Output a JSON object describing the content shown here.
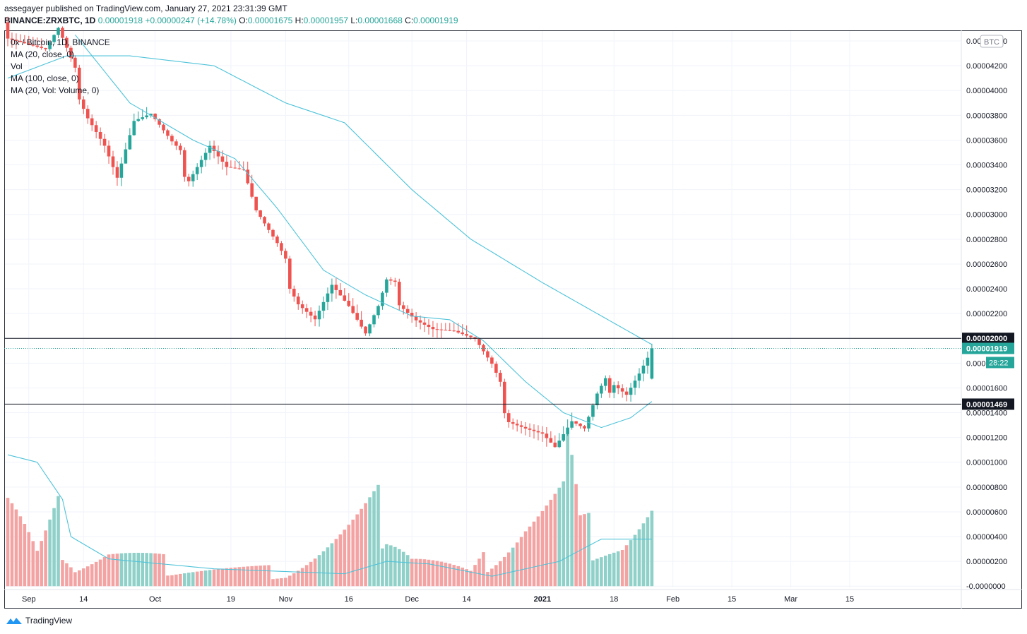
{
  "header": {
    "publisher": "assegayer published on TradingView.com, January 27, 2021 23:31:39 GMT",
    "symbol": "BINANCE:ZRXBTC, 1D",
    "last": "0.00001918",
    "change": "+0.00000247 (+14.78%)",
    "o_label": "O:",
    "o": "0.00001675",
    "h_label": "H:",
    "h": "0.00001957",
    "l_label": "L:",
    "l": "0.00001668",
    "c_label": "C:",
    "c": "0.00001919"
  },
  "legend": [
    "0x / Bitcoin, 1D, BINANCE",
    "MA (20, close, 0)",
    "Vol",
    "MA (100, close, 0)",
    "MA (20, Vol: Volume, 0)"
  ],
  "footer": {
    "brand": "TradingView"
  },
  "colors": {
    "up": "#26a69a",
    "down": "#ef5350",
    "ma": "#4fc3d9",
    "up_vol": "#8fd0c8",
    "down_vol": "#f4a3a3"
  },
  "chart_data": {
    "type": "candlestick",
    "currency_badge": "BTC",
    "countdown": "28:22",
    "ylim": [
      -0.0,
      4.5e-05
    ],
    "y_ticks": [
      "0.00004400",
      "0.00004200",
      "0.00004000",
      "0.00003800",
      "0.00003600",
      "0.00003400",
      "0.00003200",
      "0.00003000",
      "0.00002800",
      "0.00002600",
      "0.00002400",
      "0.00002200",
      "0.00002000",
      "0.00001800",
      "0.00001600",
      "0.00001400",
      "0.00001200",
      "0.00001000",
      "0.00000800",
      "0.00000600",
      "0.00000400",
      "0.00000200",
      "-0.0000000"
    ],
    "x_ticks": [
      "Sep",
      "14",
      "Oct",
      "19",
      "Nov",
      "16",
      "Dec",
      "14",
      "2021",
      "18",
      "Feb",
      "15",
      "Mar",
      "15"
    ],
    "horizontal_lines": [
      {
        "value": 2e-05,
        "label": "0.00002000"
      },
      {
        "value": 1.469e-05,
        "label": "0.00001469"
      }
    ],
    "last_price": {
      "value": 1.919e-05,
      "label": "0.00001919"
    },
    "date_range": [
      "2020-08-27",
      "2021-01-27"
    ],
    "close_anchors": [
      [
        "2020-08-27",
        4.45e-05
      ],
      [
        "2020-09-05",
        4.3e-05
      ],
      [
        "2020-09-08",
        4.45e-05
      ],
      [
        "2020-09-12",
        4.1e-05
      ],
      [
        "2020-09-15",
        3.85e-05
      ],
      [
        "2020-09-19",
        3.6e-05
      ],
      [
        "2020-09-22",
        3.32e-05
      ],
      [
        "2020-09-26",
        3.75e-05
      ],
      [
        "2020-09-30",
        3.78e-05
      ],
      [
        "2020-10-05",
        3.52e-05
      ],
      [
        "2020-10-09",
        3.35e-05
      ],
      [
        "2020-10-14",
        3.6e-05
      ],
      [
        "2020-10-18",
        3.4e-05
      ],
      [
        "2020-10-22",
        3.35e-05
      ],
      [
        "2020-10-25",
        3e-05
      ],
      [
        "2020-10-30",
        2.7e-05
      ],
      [
        "2020-11-04",
        2.35e-05
      ],
      [
        "2020-11-08",
        2.2e-05
      ],
      [
        "2020-11-12",
        2.45e-05
      ],
      [
        "2020-11-16",
        2.25e-05
      ],
      [
        "2020-11-20",
        2e-05
      ],
      [
        "2020-11-23",
        2.2e-05
      ],
      [
        "2020-11-25",
        2.4e-05
      ],
      [
        "2020-11-28",
        2.35e-05
      ],
      [
        "2020-12-02",
        2.2e-05
      ],
      [
        "2020-12-06",
        2.1e-05
      ],
      [
        "2020-12-11",
        2.05e-05
      ],
      [
        "2020-12-16",
        1.95e-05
      ],
      [
        "2020-12-20",
        1.72e-05
      ],
      [
        "2020-12-24",
        1.4e-05
      ],
      [
        "2020-12-28",
        1.32e-05
      ],
      [
        "2021-01-01",
        1.25e-05
      ],
      [
        "2021-01-04",
        1.12e-05
      ],
      [
        "2021-01-08",
        1.3e-05
      ],
      [
        "2021-01-11",
        1.22e-05
      ],
      [
        "2021-01-14",
        1.48e-05
      ],
      [
        "2021-01-18",
        1.7e-05
      ],
      [
        "2021-01-21",
        1.6e-05
      ],
      [
        "2021-01-24",
        1.75e-05
      ],
      [
        "2021-01-27",
        1.92e-05
      ]
    ],
    "ma20_anchors": [
      [
        "2020-09-12",
        4.45e-05
      ],
      [
        "2020-09-25",
        3.9e-05
      ],
      [
        "2020-10-10",
        3.6e-05
      ],
      [
        "2020-10-20",
        3.45e-05
      ],
      [
        "2020-10-30",
        3.05e-05
      ],
      [
        "2020-11-10",
        2.55e-05
      ],
      [
        "2020-11-20",
        2.35e-05
      ],
      [
        "2020-12-01",
        2.18e-05
      ],
      [
        "2020-12-10",
        2.15e-05
      ],
      [
        "2020-12-18",
        1.98e-05
      ],
      [
        "2020-12-28",
        1.65e-05
      ],
      [
        "2021-01-06",
        1.4e-05
      ],
      [
        "2021-01-15",
        1.28e-05
      ],
      [
        "2021-01-22",
        1.36e-05
      ],
      [
        "2021-01-27",
        1.49e-05
      ]
    ],
    "ma100_anchors": [
      [
        "2020-08-27",
        4.1e-05
      ],
      [
        "2020-09-10",
        4.28e-05
      ],
      [
        "2020-09-25",
        4.28e-05
      ],
      [
        "2020-10-15",
        4.2e-05
      ],
      [
        "2020-11-01",
        3.9e-05
      ],
      [
        "2020-11-15",
        3.74e-05
      ],
      [
        "2020-12-01",
        3.2e-05
      ],
      [
        "2020-12-15",
        2.8e-05
      ],
      [
        "2021-01-01",
        2.45e-05
      ],
      [
        "2021-01-27",
        1.95e-05
      ]
    ],
    "volume_anchors": [
      [
        "2020-08-27",
        8e-06
      ],
      [
        "2020-09-03",
        2.5e-06
      ],
      [
        "2020-09-08",
        5.5e-06
      ],
      [
        "2020-09-12",
        2e-06
      ],
      [
        "2020-09-20",
        3e-06
      ],
      [
        "2020-10-05",
        1.8e-06
      ],
      [
        "2020-11-01",
        1.2e-06
      ],
      [
        "2020-11-25",
        6.5e-06
      ],
      [
        "2020-12-01",
        3e-06
      ],
      [
        "2020-12-15",
        1e-06
      ],
      [
        "2020-12-28",
        5.5e-06
      ],
      [
        "2021-01-06",
        7.5e-06
      ],
      [
        "2021-01-07",
        1.1e-05
      ],
      [
        "2021-01-10",
        4.5e-06
      ],
      [
        "2021-01-20",
        4e-06
      ],
      [
        "2021-01-27",
        6.2e-06
      ]
    ],
    "vol_ma_anchors": [
      [
        "2020-08-27",
        1.06e-05
      ],
      [
        "2020-09-03",
        1e-05
      ],
      [
        "2020-09-09",
        7e-06
      ],
      [
        "2020-09-11",
        4e-06
      ],
      [
        "2020-09-20",
        2.2e-06
      ],
      [
        "2020-10-15",
        1.4e-06
      ],
      [
        "2020-11-15",
        1e-06
      ],
      [
        "2020-11-25",
        2e-06
      ],
      [
        "2020-12-05",
        1.8e-06
      ],
      [
        "2020-12-20",
        8e-07
      ],
      [
        "2021-01-05",
        2e-06
      ],
      [
        "2021-01-15",
        3.8e-06
      ],
      [
        "2021-01-27",
        3.8e-06
      ]
    ]
  }
}
